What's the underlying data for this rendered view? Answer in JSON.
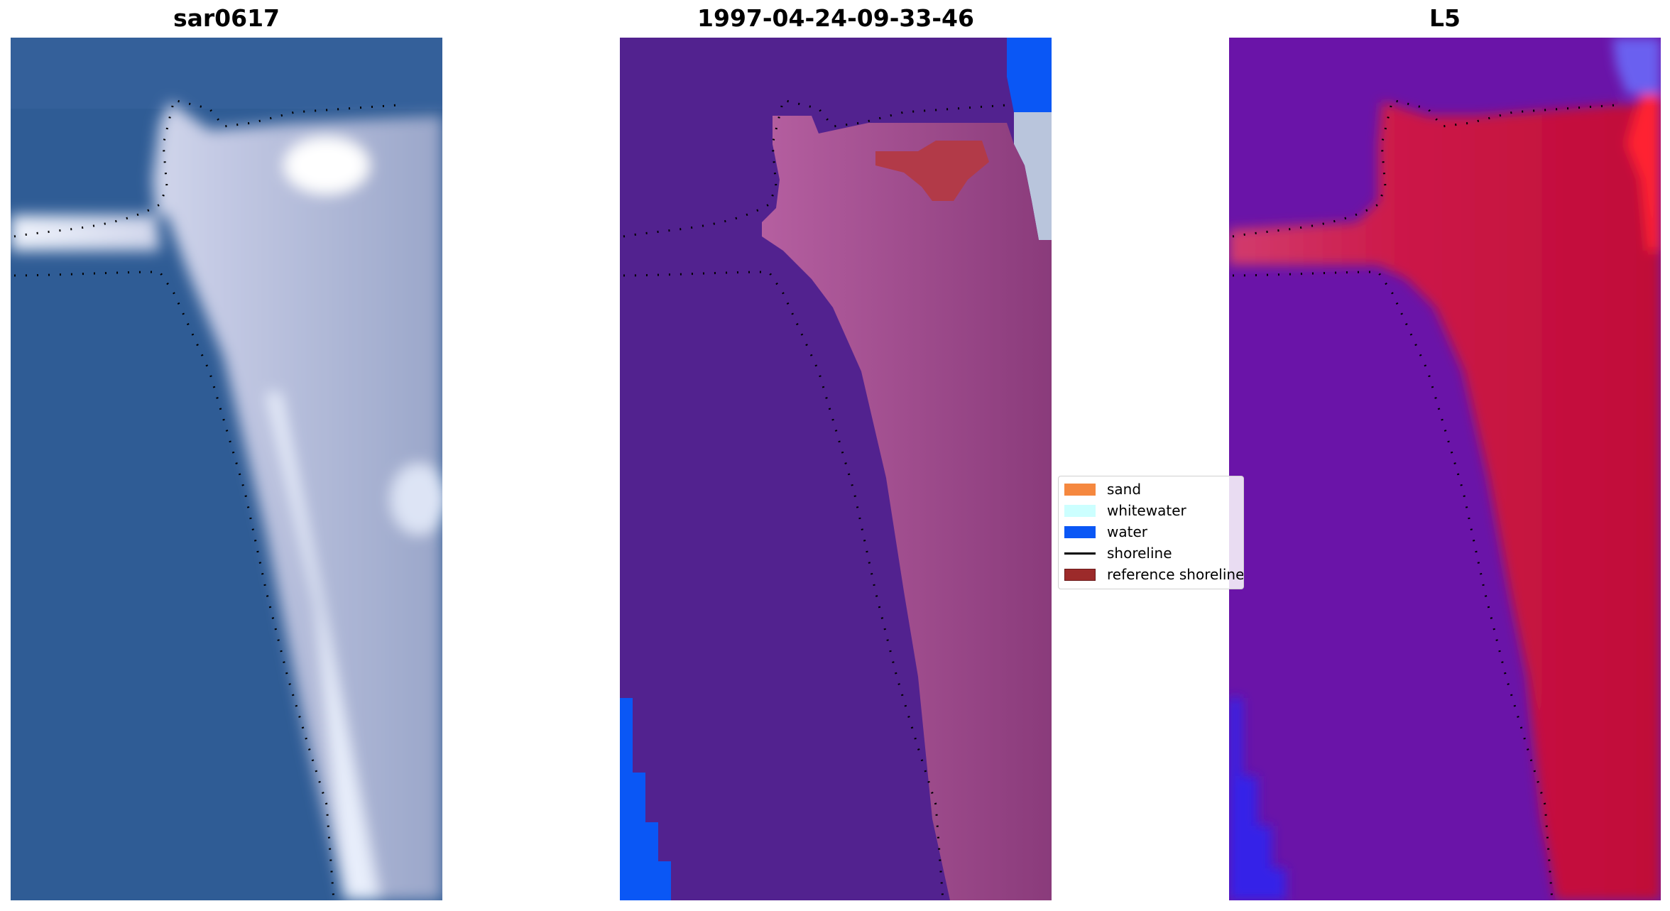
{
  "panels": [
    {
      "title": "sar0617"
    },
    {
      "title": "1997-04-24-09-33-46"
    },
    {
      "title": "L5"
    }
  ],
  "legend": {
    "items": [
      {
        "label": "sand",
        "color": "#f5883f",
        "kind": "patch"
      },
      {
        "label": "whitewater",
        "color": "#ccffff",
        "kind": "patch"
      },
      {
        "label": "water",
        "color": "#0a57f5",
        "kind": "patch"
      },
      {
        "label": "shoreline",
        "color": "#000000",
        "kind": "line"
      },
      {
        "label": "reference shoreline",
        "color": "#9c2a2a",
        "kind": "patch"
      }
    ]
  },
  "colors": {
    "rgb_water": "#2e5d96",
    "rgb_land": "#c7cde6",
    "class_background": "#52228f",
    "class_sand_overlay": "#a0508c",
    "class_water": "#0a57f5",
    "class_reference": "#b23a48",
    "index_low": "#5a12a0",
    "index_high": "#c8103c"
  }
}
